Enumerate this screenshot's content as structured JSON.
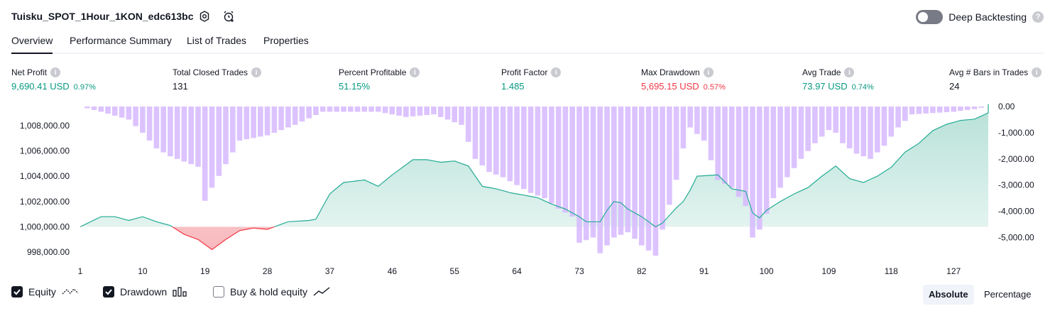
{
  "header": {
    "title": "Tuisku_SPOT_1Hour_1KON_edc613bc",
    "deep_backtesting_label": "Deep Backtesting",
    "help_glyph": "?"
  },
  "tabs": [
    {
      "label": "Overview",
      "active": true
    },
    {
      "label": "Performance Summary",
      "active": false
    },
    {
      "label": "List of Trades",
      "active": false
    },
    {
      "label": "Properties",
      "active": false
    }
  ],
  "metrics": [
    {
      "label": "Net Profit",
      "value": "9,690.41 USD",
      "pct": "0.97%",
      "tone": "pos"
    },
    {
      "label": "Total Closed Trades",
      "value": "131",
      "pct": "",
      "tone": "neu"
    },
    {
      "label": "Percent Profitable",
      "value": "51.15%",
      "pct": "",
      "tone": "pos"
    },
    {
      "label": "Profit Factor",
      "value": "1.485",
      "pct": "",
      "tone": "pos"
    },
    {
      "label": "Max Drawdown",
      "value": "5,695.15 USD",
      "pct": "0.57%",
      "tone": "neg"
    },
    {
      "label": "Avg Trade",
      "value": "73.97 USD",
      "pct": "0.74%",
      "tone": "pos"
    },
    {
      "label": "Avg # Bars in Trades",
      "value": "24",
      "pct": "",
      "tone": "neu"
    }
  ],
  "chart_data": {
    "type": "area",
    "x_ticks": [
      "1",
      "10",
      "19",
      "28",
      "37",
      "46",
      "55",
      "64",
      "73",
      "82",
      "91",
      "100",
      "109",
      "118",
      "127"
    ],
    "left_axis": {
      "ticks": [
        "1,008,000.00",
        "1,006,000.00",
        "1,004,000.00",
        "1,002,000.00",
        "1,000,000.00",
        "998,000.00"
      ],
      "ylim": [
        997500,
        1009500
      ]
    },
    "right_axis": {
      "ticks": [
        "0.00",
        "-1,000.00",
        "-2,000.00",
        "-3,000.00",
        "-4,000.00",
        "-5,000.00"
      ],
      "ylim": [
        -5800,
        0
      ]
    },
    "baseline": 1000000,
    "equity_knots": [
      [
        1,
        1000000
      ],
      [
        4,
        1000800
      ],
      [
        6,
        1000800
      ],
      [
        8,
        1000500
      ],
      [
        10,
        1000800
      ],
      [
        12,
        1000400
      ],
      [
        14,
        1000100
      ],
      [
        16,
        999400
      ],
      [
        18,
        999000
      ],
      [
        20,
        998200
      ],
      [
        22,
        999000
      ],
      [
        24,
        999700
      ],
      [
        26,
        999900
      ],
      [
        28,
        999800
      ],
      [
        31,
        1000400
      ],
      [
        34,
        1000500
      ],
      [
        35,
        1000600
      ],
      [
        37,
        1002600
      ],
      [
        39,
        1003500
      ],
      [
        42,
        1003700
      ],
      [
        44,
        1003200
      ],
      [
        46,
        1004100
      ],
      [
        49,
        1005300
      ],
      [
        51,
        1005300
      ],
      [
        53,
        1005100
      ],
      [
        55,
        1005200
      ],
      [
        57,
        1004800
      ],
      [
        59,
        1003200
      ],
      [
        61,
        1003000
      ],
      [
        63,
        1002700
      ],
      [
        65,
        1002500
      ],
      [
        67,
        1002300
      ],
      [
        69,
        1001800
      ],
      [
        71,
        1001400
      ],
      [
        73,
        1000800
      ],
      [
        74,
        1000400
      ],
      [
        76,
        1000400
      ],
      [
        77,
        1001300
      ],
      [
        78,
        1002000
      ],
      [
        79,
        1001900
      ],
      [
        80,
        1001400
      ],
      [
        82,
        1000800
      ],
      [
        84,
        1000000
      ],
      [
        85,
        1000300
      ],
      [
        87,
        1001500
      ],
      [
        88,
        1002000
      ],
      [
        89,
        1002900
      ],
      [
        90,
        1004000
      ],
      [
        93,
        1004100
      ],
      [
        95,
        1003000
      ],
      [
        97,
        1002800
      ],
      [
        98,
        1001100
      ],
      [
        99,
        1000700
      ],
      [
        100,
        1001300
      ],
      [
        102,
        1002000
      ],
      [
        104,
        1002600
      ],
      [
        106,
        1003100
      ],
      [
        108,
        1004000
      ],
      [
        110,
        1004800
      ],
      [
        112,
        1003800
      ],
      [
        114,
        1003500
      ],
      [
        116,
        1004000
      ],
      [
        118,
        1004700
      ],
      [
        120,
        1005900
      ],
      [
        122,
        1006600
      ],
      [
        124,
        1007600
      ],
      [
        126,
        1008100
      ],
      [
        128,
        1008400
      ],
      [
        130,
        1008500
      ],
      [
        132,
        1009000
      ],
      [
        132,
        1009690
      ]
    ],
    "drawdown_knots": [
      [
        1,
        0
      ],
      [
        4,
        -200
      ],
      [
        8,
        -500
      ],
      [
        10,
        -1000
      ],
      [
        12,
        -1600
      ],
      [
        14,
        -1900
      ],
      [
        18,
        -2300
      ],
      [
        19,
        -3600
      ],
      [
        20,
        -3100
      ],
      [
        22,
        -2200
      ],
      [
        24,
        -1300
      ],
      [
        28,
        -1100
      ],
      [
        32,
        -700
      ],
      [
        36,
        -200
      ],
      [
        44,
        -200
      ],
      [
        48,
        -400
      ],
      [
        52,
        -300
      ],
      [
        56,
        -700
      ],
      [
        58,
        -2000
      ],
      [
        60,
        -2500
      ],
      [
        62,
        -2700
      ],
      [
        64,
        -3000
      ],
      [
        66,
        -3300
      ],
      [
        68,
        -3500
      ],
      [
        70,
        -3900
      ],
      [
        72,
        -4200
      ],
      [
        73,
        -5200
      ],
      [
        75,
        -5000
      ],
      [
        76,
        -5600
      ],
      [
        78,
        -5000
      ],
      [
        80,
        -4800
      ],
      [
        82,
        -5300
      ],
      [
        84,
        -5695
      ],
      [
        85,
        -4700
      ],
      [
        87,
        -2800
      ],
      [
        88,
        -1600
      ],
      [
        89,
        -800
      ],
      [
        91,
        -1300
      ],
      [
        93,
        -2800
      ],
      [
        95,
        -3100
      ],
      [
        97,
        -3800
      ],
      [
        98,
        -5000
      ],
      [
        99,
        -4700
      ],
      [
        101,
        -3500
      ],
      [
        103,
        -2700
      ],
      [
        105,
        -2000
      ],
      [
        107,
        -1400
      ],
      [
        109,
        -900
      ],
      [
        110,
        -1000
      ],
      [
        111,
        -1400
      ],
      [
        113,
        -1800
      ],
      [
        115,
        -2000
      ],
      [
        117,
        -1500
      ],
      [
        119,
        -800
      ],
      [
        121,
        -300
      ],
      [
        127,
        -200
      ],
      [
        130,
        -100
      ],
      [
        132,
        0
      ]
    ],
    "colors": {
      "equity_line": "#22ab94",
      "equity_fill": "#b2dfd5",
      "loss_line": "#f23645",
      "loss_fill": "#f7b5b9",
      "drawdown": "#d6b8ff"
    }
  },
  "legend": [
    {
      "label": "Equity",
      "checked": true,
      "icon": "equity-line-icon"
    },
    {
      "label": "Drawdown",
      "checked": true,
      "icon": "drawdown-bars-icon"
    },
    {
      "label": "Buy & hold equity",
      "checked": false,
      "icon": "buy-hold-line-icon"
    }
  ],
  "view_modes": [
    {
      "label": "Absolute",
      "active": true
    },
    {
      "label": "Percentage",
      "active": false
    }
  ]
}
